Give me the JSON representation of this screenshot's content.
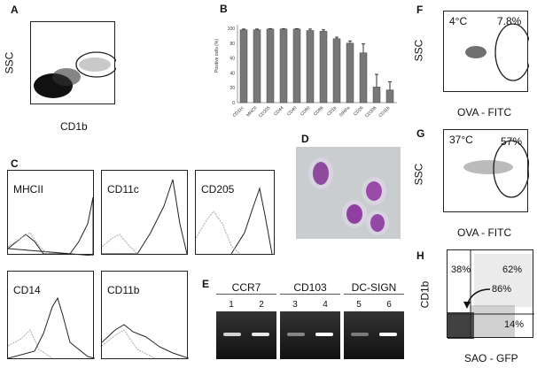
{
  "panels": {
    "A": {
      "label": "A",
      "ylabel": "SSC",
      "xlabel": "CD1b",
      "ticks": [
        "10⁰",
        "10¹",
        "10²",
        "10³",
        "10⁴"
      ]
    },
    "B": {
      "label": "B",
      "ylabel": "Positive cells (%)"
    },
    "C": {
      "label": "C",
      "histograms": [
        "MHCII",
        "CD11c",
        "CD205",
        "CD14",
        "CD11b"
      ]
    },
    "D": {
      "label": "D"
    },
    "E": {
      "label": "E",
      "genes": [
        "CCR7",
        "CD103",
        "DC-SIGN"
      ],
      "lanes": [
        "1",
        "2",
        "3",
        "4",
        "5",
        "6"
      ]
    },
    "F": {
      "label": "F",
      "ylabel": "SSC",
      "xlabel": "OVA - FITC",
      "temp": "4°C",
      "pct": "7.8%"
    },
    "G": {
      "label": "G",
      "ylabel": "SSC",
      "xlabel": "OVA - FITC",
      "temp": "37°C",
      "pct": "57%"
    },
    "H": {
      "label": "H",
      "ylabel": "CD1b",
      "xlabel": "SAO - GFP",
      "q_ul": "38%",
      "q_ur": "62%",
      "q_lr": "14%",
      "arrow": "86%"
    }
  },
  "chart_data": [
    {
      "panel": "B",
      "type": "bar",
      "title": "",
      "xlabel": "",
      "ylabel": "Positive cells (%)",
      "ylim": [
        0,
        100
      ],
      "yticks": [
        0,
        20,
        40,
        60,
        80,
        100
      ],
      "categories": [
        "CD11c",
        "MHCII",
        "CD205",
        "CD44",
        "CD40",
        "CD80",
        "CD86",
        "CD1b",
        "SIRPa",
        "CD26",
        "CD206",
        "CD11b"
      ],
      "values": [
        98,
        98,
        99,
        99,
        99,
        97,
        96,
        86,
        80,
        67,
        21,
        17
      ],
      "errors": [
        1,
        1,
        0.5,
        0.5,
        0.5,
        2,
        2,
        2,
        3,
        12,
        17,
        11
      ]
    }
  ]
}
